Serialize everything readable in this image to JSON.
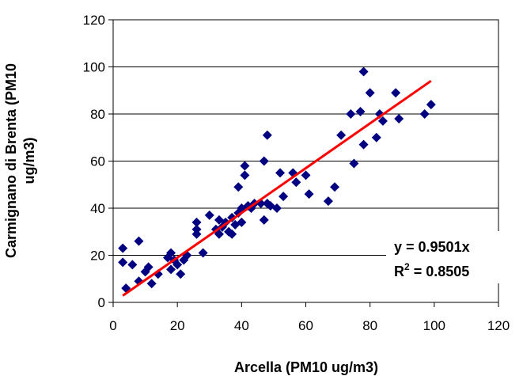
{
  "chart_data": {
    "type": "scatter",
    "xlabel": "Arcella (PM10 ug/m3)",
    "ylabel_line1": "Carmignano di Brenta (PM10",
    "ylabel_line2": "ug/m3)",
    "xlim": [
      0,
      120
    ],
    "ylim": [
      0,
      120
    ],
    "x_ticks": [
      "0",
      "20",
      "40",
      "60",
      "80",
      "100",
      "120"
    ],
    "y_ticks": [
      "0",
      "20",
      "40",
      "60",
      "80",
      "100",
      "120"
    ],
    "grid": "horizontal",
    "marker_color": "#000080",
    "trendline": {
      "type": "linear-through-origin",
      "slope": 0.9501,
      "x_range": [
        3,
        99
      ],
      "color": "#ff0000"
    },
    "equation": {
      "line1": "y = 0.9501x",
      "r_prefix": "R",
      "r_sup": "2",
      "r_value": " = 0.8505",
      "position": "right"
    },
    "points": [
      [
        3,
        23
      ],
      [
        3,
        17
      ],
      [
        4,
        6
      ],
      [
        6,
        16
      ],
      [
        8,
        9
      ],
      [
        8,
        26
      ],
      [
        10,
        13
      ],
      [
        11,
        15
      ],
      [
        12,
        8
      ],
      [
        14,
        12
      ],
      [
        17,
        19
      ],
      [
        18,
        21
      ],
      [
        18,
        14
      ],
      [
        19,
        18
      ],
      [
        20,
        16
      ],
      [
        21,
        12
      ],
      [
        22,
        18
      ],
      [
        23,
        20
      ],
      [
        26,
        34
      ],
      [
        26,
        31
      ],
      [
        26,
        29
      ],
      [
        28,
        21
      ],
      [
        30,
        37
      ],
      [
        32,
        31
      ],
      [
        33,
        29
      ],
      [
        33,
        35
      ],
      [
        34,
        32
      ],
      [
        35,
        34
      ],
      [
        36,
        30
      ],
      [
        37,
        29
      ],
      [
        37,
        36
      ],
      [
        38,
        33
      ],
      [
        39,
        49
      ],
      [
        39,
        38
      ],
      [
        40,
        40
      ],
      [
        40,
        34
      ],
      [
        41,
        54
      ],
      [
        41,
        58
      ],
      [
        42,
        41
      ],
      [
        43,
        40
      ],
      [
        44,
        42
      ],
      [
        46,
        42
      ],
      [
        47,
        60
      ],
      [
        47,
        35
      ],
      [
        48,
        71
      ],
      [
        48,
        42
      ],
      [
        49,
        41
      ],
      [
        51,
        40
      ],
      [
        52,
        55
      ],
      [
        53,
        45
      ],
      [
        56,
        55
      ],
      [
        57,
        51
      ],
      [
        60,
        54
      ],
      [
        61,
        46
      ],
      [
        67,
        43
      ],
      [
        69,
        49
      ],
      [
        71,
        71
      ],
      [
        74,
        80
      ],
      [
        75,
        59
      ],
      [
        77,
        81
      ],
      [
        78,
        67
      ],
      [
        78,
        98
      ],
      [
        80,
        89
      ],
      [
        82,
        70
      ],
      [
        83,
        80
      ],
      [
        84,
        77
      ],
      [
        88,
        89
      ],
      [
        89,
        78
      ],
      [
        97,
        80
      ],
      [
        99,
        84
      ]
    ]
  }
}
